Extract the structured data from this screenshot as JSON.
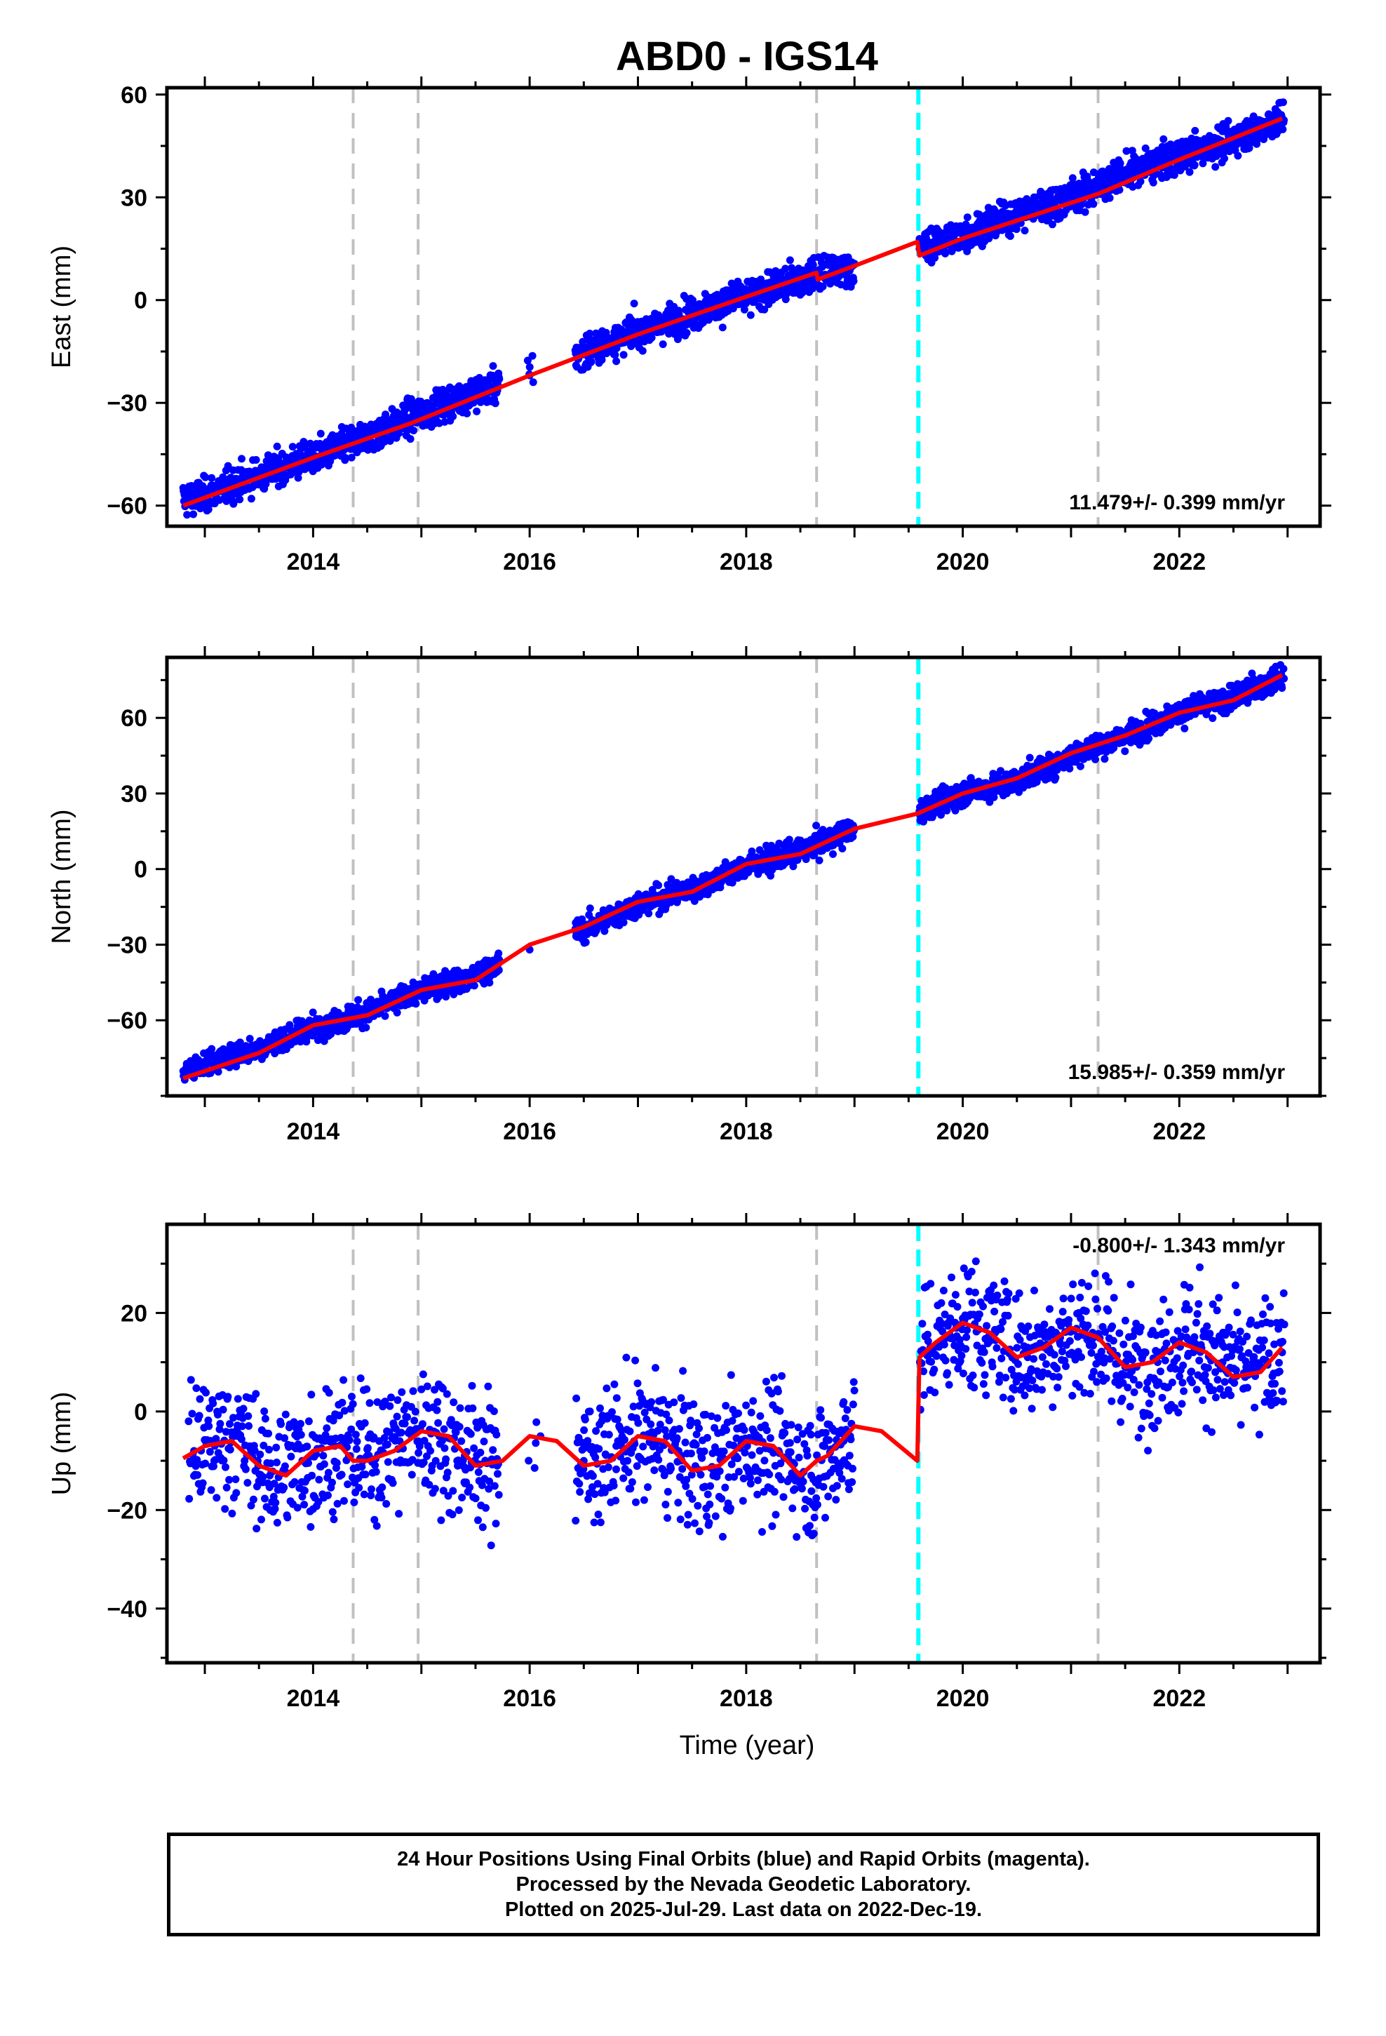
{
  "chart_data": {
    "type": "scatter",
    "title": "ABD0 - IGS14",
    "xlabel": "Time (year)",
    "xlim": [
      2012.65,
      2023.3
    ],
    "x_ticks": [
      "2014",
      "2016",
      "2018",
      "2020",
      "2022"
    ],
    "x_tick_values": [
      2014,
      2016,
      2018,
      2020,
      2022
    ],
    "event_lines": {
      "gray_dashed": [
        2014.37,
        2014.97,
        2018.65,
        2021.25
      ],
      "cyan_dashed": [
        2019.59
      ]
    },
    "colors": {
      "points": "#0000ff",
      "model": "#ff0000",
      "event_gray": "#c0c0c0",
      "event_cyan": "#00ffff"
    },
    "data_gaps": [
      [
        2015.72,
        2015.98
      ],
      [
        2016.08,
        2016.42
      ],
      [
        2019.0,
        2019.6
      ]
    ],
    "panels": [
      {
        "component": "east",
        "ylabel": "East (mm)",
        "ylim": [
          -66,
          62
        ],
        "y_ticks": [
          "60",
          "30",
          "0",
          "−30",
          "−60"
        ],
        "y_tick_values": [
          60,
          30,
          0,
          -30,
          -60
        ],
        "rate_text": "11.479+/- 0.399 mm/yr",
        "series": [
          {
            "style": "points",
            "x": [
              2012.85,
              2013.0,
              2013.5,
              2014.0,
              2014.5,
              2015.0,
              2015.5,
              2016.0,
              2016.5,
              2017.0,
              2017.5,
              2018.0,
              2018.5,
              2018.9,
              2019.6,
              2020.0,
              2020.5,
              2021.0,
              2021.5,
              2022.0,
              2022.5,
              2022.95
            ],
            "y": [
              -58,
              -57,
              -51,
              -46,
              -40,
              -33,
              -27,
              -22,
              -15,
              -9,
              -4,
              1,
              6,
              9,
              15,
              19,
              25,
              30,
              37,
              42,
              47,
              53
            ]
          },
          {
            "style": "line",
            "x": [
              2012.8,
              2014.0,
              2014.9,
              2016.0,
              2017.0,
              2018.0,
              2018.65,
              2018.66,
              2019.0,
              2019.58,
              2019.6,
              2020.0,
              2021.25,
              2022.0,
              2022.95
            ],
            "y": [
              -60,
              -46,
              -36,
              -22,
              -10,
              1,
              8,
              6,
              10,
              17,
              13,
              18,
              31,
              41,
              53
            ]
          }
        ]
      },
      {
        "component": "north",
        "ylabel": "North (mm)",
        "ylim": [
          -90,
          84
        ],
        "y_ticks": [
          "60",
          "30",
          "0",
          "−30",
          "−60"
        ],
        "y_tick_values": [
          60,
          30,
          0,
          -30,
          -60
        ],
        "rate_text": "15.985+/- 0.359 mm/yr",
        "series": [
          {
            "style": "points",
            "x": [
              2012.85,
              2013.0,
              2013.5,
              2014.0,
              2014.5,
              2015.0,
              2015.5,
              2016.0,
              2016.5,
              2017.0,
              2017.5,
              2018.0,
              2018.5,
              2018.9,
              2019.6,
              2020.0,
              2020.5,
              2021.0,
              2021.5,
              2022.0,
              2022.5,
              2022.95
            ],
            "y": [
              -80,
              -77,
              -71,
              -63,
              -57,
              -48,
              -42,
              -32,
              -24,
              -14,
              -8,
              1,
              7,
              14,
              23,
              30,
              35,
              45,
              53,
              62,
              68,
              76
            ]
          },
          {
            "style": "line",
            "x": [
              2012.8,
              2013.5,
              2014.0,
              2014.5,
              2015.0,
              2015.5,
              2016.0,
              2016.5,
              2017.0,
              2017.5,
              2018.0,
              2018.5,
              2019.0,
              2019.58,
              2020.0,
              2020.5,
              2021.0,
              2021.5,
              2022.0,
              2022.5,
              2022.95
            ],
            "y": [
              -83,
              -73,
              -62,
              -58,
              -48,
              -44,
              -30,
              -23,
              -13,
              -9,
              2,
              6,
              16,
              22,
              30,
              36,
              46,
              53,
              62,
              67,
              77
            ]
          }
        ]
      },
      {
        "component": "up",
        "ylabel": "Up (mm)",
        "ylim": [
          -51,
          38
        ],
        "y_ticks": [
          "20",
          "0",
          "−20",
          "−40"
        ],
        "y_tick_values": [
          20,
          0,
          -20,
          -40
        ],
        "rate_text": "-0.800+/- 1.343 mm/yr",
        "series": [
          {
            "style": "points",
            "x": [
              2012.9,
              2013.1,
              2013.3,
              2013.6,
              2013.9,
              2014.2,
              2014.5,
              2014.8,
              2015.1,
              2015.4,
              2015.7,
              2016.1,
              2016.5,
              2016.8,
              2017.1,
              2017.4,
              2017.7,
              2018.0,
              2018.3,
              2018.6,
              2018.9,
              2019.7,
              2020.0,
              2020.3,
              2020.6,
              2020.9,
              2021.2,
              2021.5,
              2021.8,
              2022.1,
              2022.4,
              2022.7,
              2022.95
            ],
            "y": [
              -8,
              -6,
              -5,
              -13,
              -10,
              -7,
              -9,
              -6,
              -4,
              -9,
              -11,
              -5,
              -10,
              -7,
              -5,
              -9,
              -12,
              -6,
              -8,
              -13,
              -6,
              13,
              18,
              16,
              11,
              15,
              16,
              9,
              10,
              14,
              10,
              8,
              12
            ]
          },
          {
            "style": "line",
            "x": [
              2012.8,
              2013.0,
              2013.25,
              2013.5,
              2013.75,
              2014.0,
              2014.25,
              2014.37,
              2014.5,
              2014.75,
              2015.0,
              2015.25,
              2015.5,
              2015.75,
              2016.0,
              2016.25,
              2016.5,
              2016.75,
              2017.0,
              2017.25,
              2017.5,
              2017.75,
              2018.0,
              2018.25,
              2018.5,
              2018.65,
              2018.75,
              2019.0,
              2019.25,
              2019.58,
              2019.6,
              2019.75,
              2020.0,
              2020.25,
              2020.5,
              2020.75,
              2021.0,
              2021.25,
              2021.5,
              2021.75,
              2022.0,
              2022.25,
              2022.5,
              2022.75,
              2022.95
            ],
            "y": [
              -9.5,
              -7,
              -6,
              -11,
              -13,
              -8,
              -7,
              -10,
              -10,
              -8,
              -4,
              -5,
              -11,
              -10,
              -5,
              -6,
              -11,
              -10,
              -5,
              -6,
              -12,
              -11,
              -6,
              -7,
              -13,
              -10,
              -9,
              -3,
              -4,
              -10,
              11,
              14,
              18,
              16,
              11,
              13,
              17,
              15,
              9,
              10,
              14,
              12,
              7,
              8,
              13
            ]
          }
        ]
      }
    ]
  },
  "footer": {
    "line1": "24 Hour Positions Using Final Orbits (blue) and Rapid Orbits (magenta).",
    "line2": "Processed by the Nevada Geodetic Laboratory.",
    "line3": "Plotted on 2025-Jul-29. Last data on 2022-Dec-19."
  }
}
